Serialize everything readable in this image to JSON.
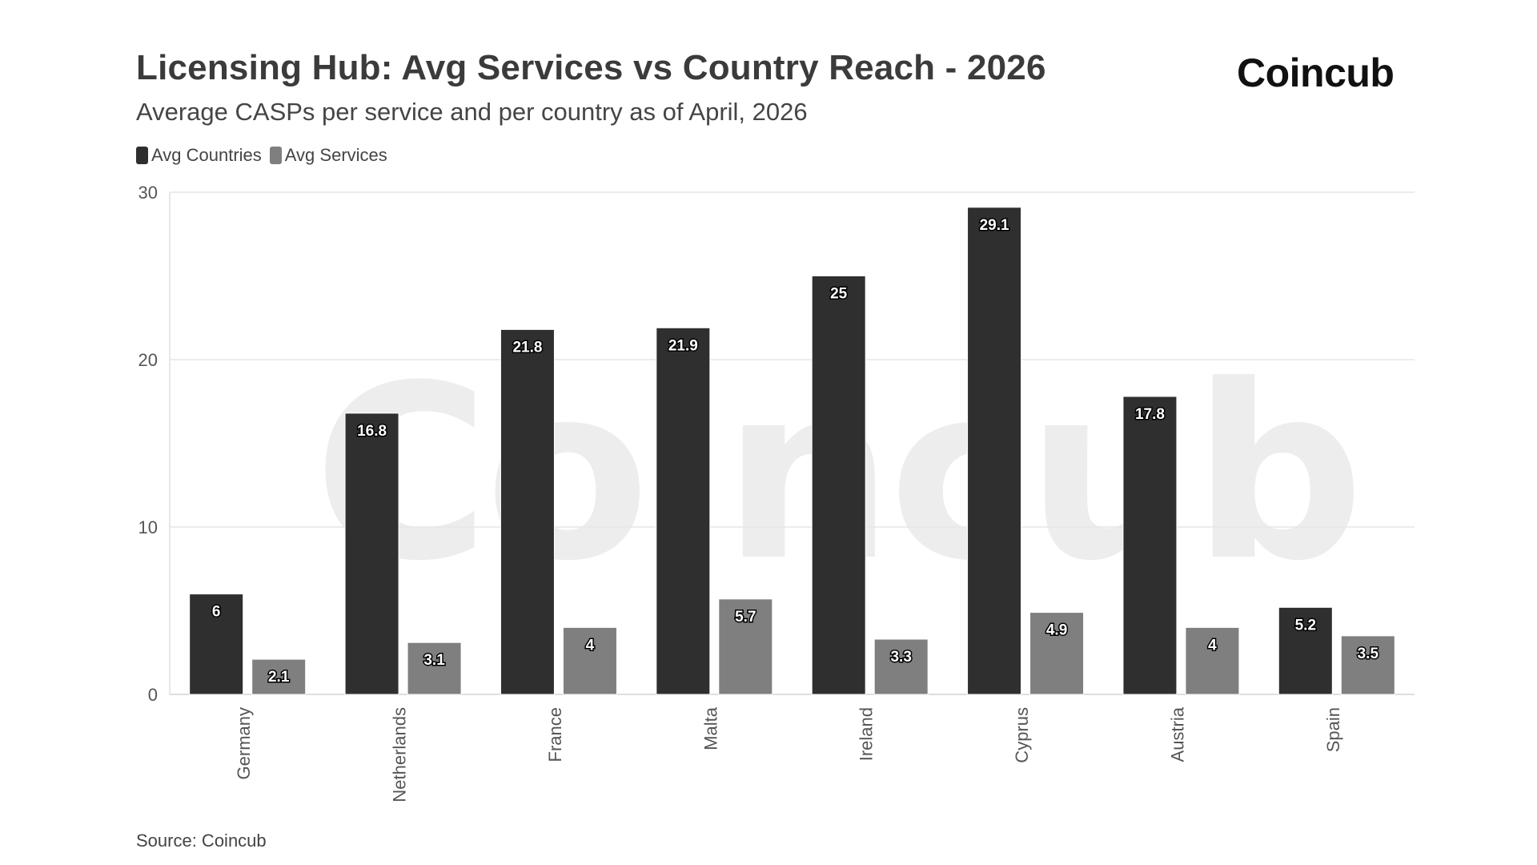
{
  "header": {
    "title": "Licensing Hub: Avg Services vs Country Reach - 2026",
    "subtitle": "Average CASPs per service and per country as of April, 2026",
    "brand": "Coincub",
    "watermark": "Coincub"
  },
  "footer": {
    "source": "Source: Coincub"
  },
  "colors": {
    "avg_countries": "#2f2f2f",
    "avg_services": "#7f7f7f",
    "grid": "#e6e6e6",
    "watermark": "#ededed"
  },
  "chart_data": {
    "type": "bar",
    "title": "Licensing Hub: Avg Services vs Country Reach - 2026",
    "subtitle": "Average CASPs per service and per country as of April, 2026",
    "xlabel": "",
    "ylabel": "",
    "categories": [
      "Germany",
      "Netherlands",
      "France",
      "Malta",
      "Ireland",
      "Cyprus",
      "Austria",
      "Spain"
    ],
    "series": [
      {
        "name": "Avg Countries",
        "values": [
          6,
          16.8,
          21.8,
          21.9,
          25,
          29.1,
          17.8,
          5.2
        ]
      },
      {
        "name": "Avg Services",
        "values": [
          2.1,
          3.1,
          4,
          5.7,
          3.3,
          4.9,
          4,
          3.5
        ]
      }
    ],
    "ylim": [
      0,
      30
    ],
    "yticks": [
      0,
      10,
      20,
      30
    ],
    "grid": true,
    "legend_position": "top-left",
    "data_labels": true
  }
}
